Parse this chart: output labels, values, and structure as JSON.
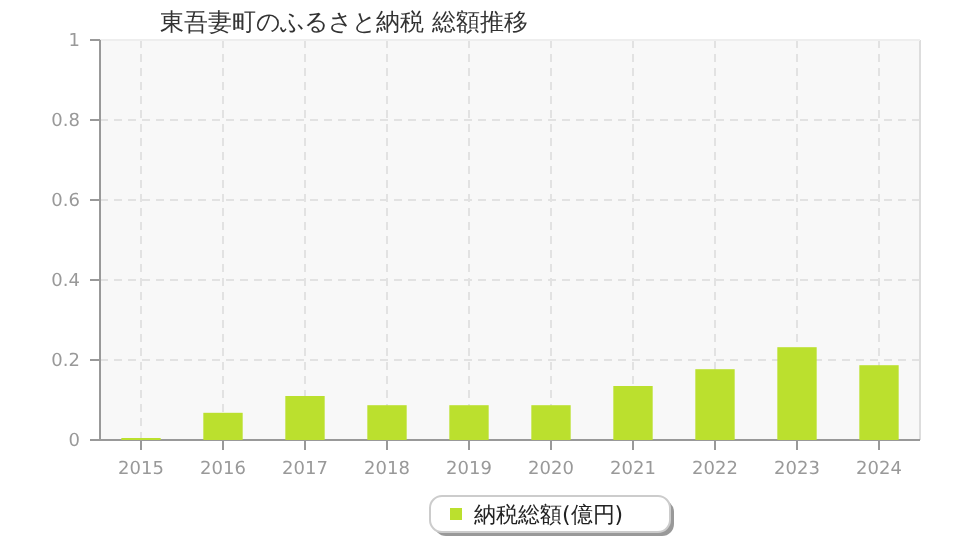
{
  "chart_data": {
    "type": "bar",
    "title": "東吾妻町のふるさと納税 総額推移",
    "categories": [
      "2015",
      "2016",
      "2017",
      "2018",
      "2019",
      "2020",
      "2021",
      "2022",
      "2023",
      "2024"
    ],
    "series": [
      {
        "name": "納税総額(億円)",
        "color": "#bbe02e",
        "values": [
          0.005,
          0.068,
          0.11,
          0.087,
          0.087,
          0.087,
          0.135,
          0.177,
          0.232,
          0.187
        ]
      }
    ],
    "ylim": [
      0,
      1
    ],
    "yticks": [
      0,
      0.2,
      0.4,
      0.6,
      0.8,
      1
    ],
    "grid": true,
    "legend": "bottom"
  }
}
